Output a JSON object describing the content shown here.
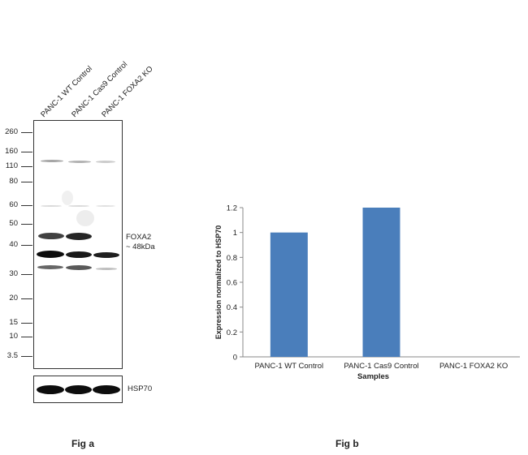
{
  "figure_a": {
    "label": "Fig a",
    "lanes": [
      "PANC-1 WT Control",
      "PANC-1 Cas9 Control",
      "PANC-1 FOXA2 KO"
    ],
    "mw_markers": [
      "260",
      "160",
      "110",
      "80",
      "60",
      "50",
      "40",
      "30",
      "20",
      "15",
      "10",
      "3.5"
    ],
    "target_label_line1": "FOXA2",
    "target_label_line2": "~ 48kDa",
    "loading_control_label": "HSP70"
  },
  "figure_b": {
    "label": "Fig b"
  },
  "chart_data": {
    "type": "bar",
    "categories": [
      "PANC-1 WT Control",
      "PANC-1 Cas9 Control",
      "PANC-1 FOXA2 KO"
    ],
    "values": [
      1.0,
      1.2,
      0
    ],
    "xlabel": "Samples",
    "ylabel": "Expression  normalized to HSP70",
    "ylim": [
      0,
      1.2
    ],
    "yticks": [
      "0",
      "0.2",
      "0.4",
      "0.6",
      "0.8",
      "1",
      "1.2"
    ],
    "bar_color": "#4a7ebb",
    "grid": false,
    "legend": "none"
  }
}
